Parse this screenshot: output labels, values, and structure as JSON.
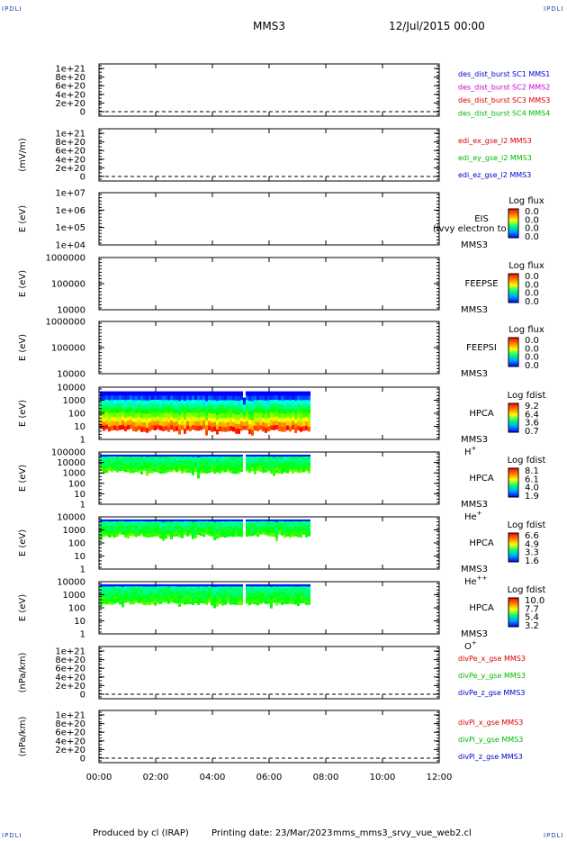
{
  "header": {
    "spacecraft": "MMS3",
    "date": "12/Jul/2015 00:00"
  },
  "corner_marks": [
    "IPDLI",
    "IPDLI",
    "IPDLI",
    "IPDLI"
  ],
  "footer": {
    "produced_by": "Produced by cl (IRAP)",
    "printing_date": "Printing date: 23/Mar/2023",
    "script": "mms_mms3_srvy_vue_web2.cl"
  },
  "colors": {
    "mms1": "#0000cc",
    "mms2": "#cc00cc",
    "mms3": "#dd0000",
    "mms4": "#00bb00"
  },
  "chart_data": {
    "type": "heatmap",
    "x_ticks": [
      "00:00",
      "02:00",
      "04:00",
      "06:00",
      "08:00",
      "10:00",
      "12:00"
    ],
    "x_range_hours": [
      0,
      12
    ],
    "panels": [
      {
        "id": "des_dist",
        "type": "line",
        "ylabel": "",
        "ticks": [
          "1e+21",
          "8e+20",
          "6e+20",
          "4e+20",
          "2e+20",
          "0"
        ],
        "legend": [
          {
            "text": "des_dist_burst SC1 MMS1",
            "color": "#0000cc"
          },
          {
            "text": "des_dist_burst SC2 MMS2",
            "color": "#cc00cc"
          },
          {
            "text": "des_dist_burst SC3 MMS3",
            "color": "#dd0000"
          },
          {
            "text": "des_dist_burst SC4 MMS4",
            "color": "#00bb00"
          }
        ]
      },
      {
        "id": "edi",
        "type": "line",
        "ylabel": "(mV/m)",
        "ticks": [
          "1e+21",
          "8e+20",
          "6e+20",
          "4e+20",
          "2e+20",
          "0"
        ],
        "legend": [
          {
            "text": "edi_ex_gse_l2 MMS3",
            "color": "#dd0000"
          },
          {
            "text": "edi_ey_gse_l2 MMS3",
            "color": "#00bb00"
          },
          {
            "text": "edi_ez_gse_l2 MMS3",
            "color": "#0000cc"
          }
        ]
      },
      {
        "id": "eis",
        "type": "spectrogram",
        "ylabel": "E (eV)",
        "ticks": [
          "1e+07",
          "1e+06",
          "1e+05",
          "1e+04"
        ],
        "labels": [
          "EIS",
          "MMS3"
        ],
        "overlay": "(ivvy electron to",
        "cbar_title": "Log flux",
        "cbar": [
          "0.0",
          "0.0",
          "0.0",
          "0.0"
        ]
      },
      {
        "id": "feeps_e",
        "type": "spectrogram",
        "ylabel": "E (eV)",
        "ticks": [
          "1000000",
          "100000",
          "10000"
        ],
        "labels": [
          "FEEPSE",
          "MMS3"
        ],
        "cbar_title": "Log flux",
        "cbar": [
          "0.0",
          "0.0",
          "0.0",
          "0.0"
        ]
      },
      {
        "id": "feeps_i",
        "type": "spectrogram",
        "ylabel": "E (eV)",
        "ticks": [
          "1000000",
          "100000",
          "10000"
        ],
        "labels": [
          "FEEPSI",
          "MMS3"
        ],
        "cbar_title": "Log flux",
        "cbar": [
          "0.0",
          "0.0",
          "0.0",
          "0.0"
        ]
      },
      {
        "id": "hpca_h",
        "type": "spectrogram",
        "ylabel": "E (eV)",
        "ticks": [
          "10000",
          "1000",
          "100",
          "10",
          "1"
        ],
        "labels": [
          "HPCA",
          "MMS3"
        ],
        "species": "H",
        "species_sup": "+",
        "cbar_title": "Log fdist",
        "cbar": [
          "9.2",
          "6.4",
          "3.6",
          "0.7"
        ],
        "data_until_hours": 7.4,
        "gap_hours": [
          5.0,
          5.15
        ]
      },
      {
        "id": "hpca_he",
        "type": "spectrogram",
        "ylabel": "E (eV)",
        "ticks": [
          "100000",
          "10000",
          "1000",
          "100",
          "10",
          "1"
        ],
        "labels": [
          "HPCA",
          "MMS3"
        ],
        "species": "He",
        "species_sup": "+",
        "cbar_title": "Log fdist",
        "cbar": [
          "8.1",
          "6.1",
          "4.0",
          "1.9"
        ],
        "data_until_hours": 7.4,
        "gap_hours": [
          5.0,
          5.15
        ]
      },
      {
        "id": "hpca_hepp",
        "type": "spectrogram",
        "ylabel": "E (eV)",
        "ticks": [
          "10000",
          "1000",
          "100",
          "10",
          "1"
        ],
        "labels": [
          "HPCA",
          "MMS3"
        ],
        "species": "He",
        "species_sup": "++",
        "cbar_title": "Log fdist",
        "cbar": [
          "6.6",
          "4.9",
          "3.3",
          "1.6"
        ],
        "data_until_hours": 7.4,
        "gap_hours": [
          5.0,
          5.15
        ]
      },
      {
        "id": "hpca_o",
        "type": "spectrogram",
        "ylabel": "E (eV)",
        "ticks": [
          "10000",
          "1000",
          "100",
          "10",
          "1"
        ],
        "labels": [
          "HPCA",
          "MMS3"
        ],
        "species": "O",
        "species_sup": "+",
        "cbar_title": "Log fdist",
        "cbar": [
          "10.0",
          "7.7",
          "5.4",
          "3.2"
        ],
        "data_until_hours": 7.4,
        "gap_hours": [
          5.0,
          5.15
        ]
      },
      {
        "id": "divpe",
        "type": "line",
        "ylabel": "(nPa/km)",
        "ticks": [
          "1e+21",
          "8e+20",
          "6e+20",
          "4e+20",
          "2e+20",
          "0"
        ],
        "legend": [
          {
            "text": "divPe_x_gse MMS3",
            "color": "#dd0000"
          },
          {
            "text": "divPe_y_gse MMS3",
            "color": "#00bb00"
          },
          {
            "text": "divPe_z_gse MMS3",
            "color": "#0000cc"
          }
        ]
      },
      {
        "id": "divpi",
        "type": "line",
        "ylabel": "(nPa/km)",
        "ticks": [
          "1e+21",
          "8e+20",
          "6e+20",
          "4e+20",
          "2e+20",
          "0"
        ],
        "legend": [
          {
            "text": "divPi_x_gse MMS3",
            "color": "#dd0000"
          },
          {
            "text": "divPi_y_gse MMS3",
            "color": "#00bb00"
          },
          {
            "text": "divPi_z_gse MMS3",
            "color": "#0000cc"
          }
        ]
      }
    ]
  }
}
